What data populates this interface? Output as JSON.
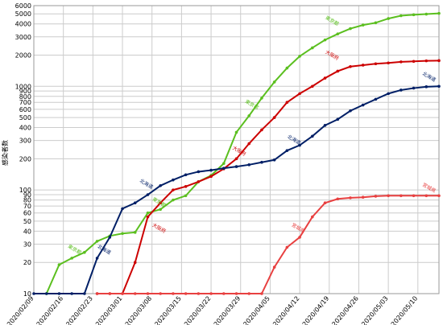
{
  "chart_data": {
    "type": "line",
    "ylabel": "感染者数",
    "x": [
      "2020/02/09",
      "2020/02/12",
      "2020/02/15",
      "2020/02/18",
      "2020/02/21",
      "2020/02/24",
      "2020/02/27",
      "2020/03/01",
      "2020/03/04",
      "2020/03/07",
      "2020/03/10",
      "2020/03/13",
      "2020/03/16",
      "2020/03/19",
      "2020/03/22",
      "2020/03/25",
      "2020/03/28",
      "2020/03/31",
      "2020/04/03",
      "2020/04/06",
      "2020/04/09",
      "2020/04/12",
      "2020/04/15",
      "2020/04/18",
      "2020/04/21",
      "2020/04/24",
      "2020/04/27",
      "2020/04/30",
      "2020/05/03",
      "2020/05/06",
      "2020/05/09",
      "2020/05/12",
      "2020/05/15"
    ],
    "series": [
      {
        "name": "東京都",
        "color": "#5bbf1f",
        "values": [
          null,
          10,
          19,
          22,
          25,
          32,
          36,
          38,
          39,
          60,
          65,
          80,
          88,
          120,
          138,
          180,
          360,
          520,
          770,
          1100,
          1500,
          1950,
          2350,
          2800,
          3200,
          3600,
          3900,
          4100,
          4500,
          4800,
          4900,
          4970,
          5050
        ]
      },
      {
        "name": "大阪府",
        "color": "#cc0000",
        "values": [
          null,
          null,
          null,
          null,
          null,
          10,
          10,
          10,
          20,
          55,
          75,
          100,
          108,
          120,
          135,
          160,
          200,
          280,
          380,
          500,
          700,
          850,
          1000,
          1200,
          1400,
          1550,
          1600,
          1650,
          1680,
          1720,
          1740,
          1760,
          1770
        ]
      },
      {
        "name": "北海道",
        "color": "#001f66",
        "values": [
          10,
          10,
          10,
          10,
          10,
          22,
          35,
          66,
          75,
          90,
          110,
          125,
          140,
          150,
          155,
          162,
          168,
          175,
          185,
          195,
          240,
          270,
          330,
          420,
          480,
          580,
          660,
          750,
          850,
          920,
          960,
          990,
          1000
        ]
      },
      {
        "name": "宮城県",
        "color": "#e84040",
        "values": [
          null,
          null,
          null,
          null,
          null,
          10,
          10,
          10,
          10,
          10,
          10,
          10,
          10,
          10,
          10,
          10,
          10,
          10,
          10,
          18,
          28,
          35,
          55,
          75,
          82,
          84,
          85,
          87,
          88,
          88,
          88,
          88,
          88
        ]
      }
    ],
    "annotations": [
      {
        "text": "東京都",
        "x": "2020/02/17",
        "y": 28,
        "color": "#5bbf1f"
      },
      {
        "text": "東京都",
        "x": "2020/03/08",
        "y": 80,
        "color": "#5bbf1f"
      },
      {
        "text": "東京都",
        "x": "2020/03/30",
        "y": 700,
        "color": "#5bbf1f"
      },
      {
        "text": "東京都",
        "x": "2020/04/18",
        "y": 4500,
        "color": "#5bbf1f"
      },
      {
        "text": "大阪府",
        "x": "2020/03/08",
        "y": 45,
        "color": "#cc0000"
      },
      {
        "text": "大阪府",
        "x": "2020/03/27",
        "y": 250,
        "color": "#cc0000"
      },
      {
        "text": "大阪府",
        "x": "2020/04/18",
        "y": 2100,
        "color": "#cc0000"
      },
      {
        "text": "北海道",
        "x": "2020/02/24",
        "y": 28,
        "color": "#001f66"
      },
      {
        "text": "北海道",
        "x": "2020/03/05",
        "y": 120,
        "color": "#001f66"
      },
      {
        "text": "北海道",
        "x": "2020/04/09",
        "y": 320,
        "color": "#001f66"
      },
      {
        "text": "北海道",
        "x": "2020/05/11",
        "y": 1300,
        "color": "#001f66"
      },
      {
        "text": "宮城県",
        "x": "2020/04/10",
        "y": 45,
        "color": "#e84040"
      },
      {
        "text": "宮城県",
        "x": "2020/05/11",
        "y": 110,
        "color": "#e84040"
      }
    ],
    "xlim": [
      "2020/02/09",
      "2020/05/15"
    ],
    "xticks": [
      "2020/02/09",
      "2020/02/16",
      "2020/02/23",
      "2020/03/01",
      "2020/03/08",
      "2020/03/15",
      "2020/03/22",
      "2020/03/29",
      "2020/04/05",
      "2020/04/12",
      "2020/04/19",
      "2020/04/26",
      "2020/05/03",
      "2020/05/10"
    ],
    "ylim": [
      10,
      6000
    ],
    "yticks": [
      10,
      20,
      30,
      40,
      50,
      60,
      70,
      80,
      90,
      100,
      200,
      300,
      400,
      500,
      600,
      700,
      800,
      900,
      1000,
      2000,
      3000,
      4000,
      5000,
      6000
    ],
    "yscale": "log",
    "grid": true
  }
}
